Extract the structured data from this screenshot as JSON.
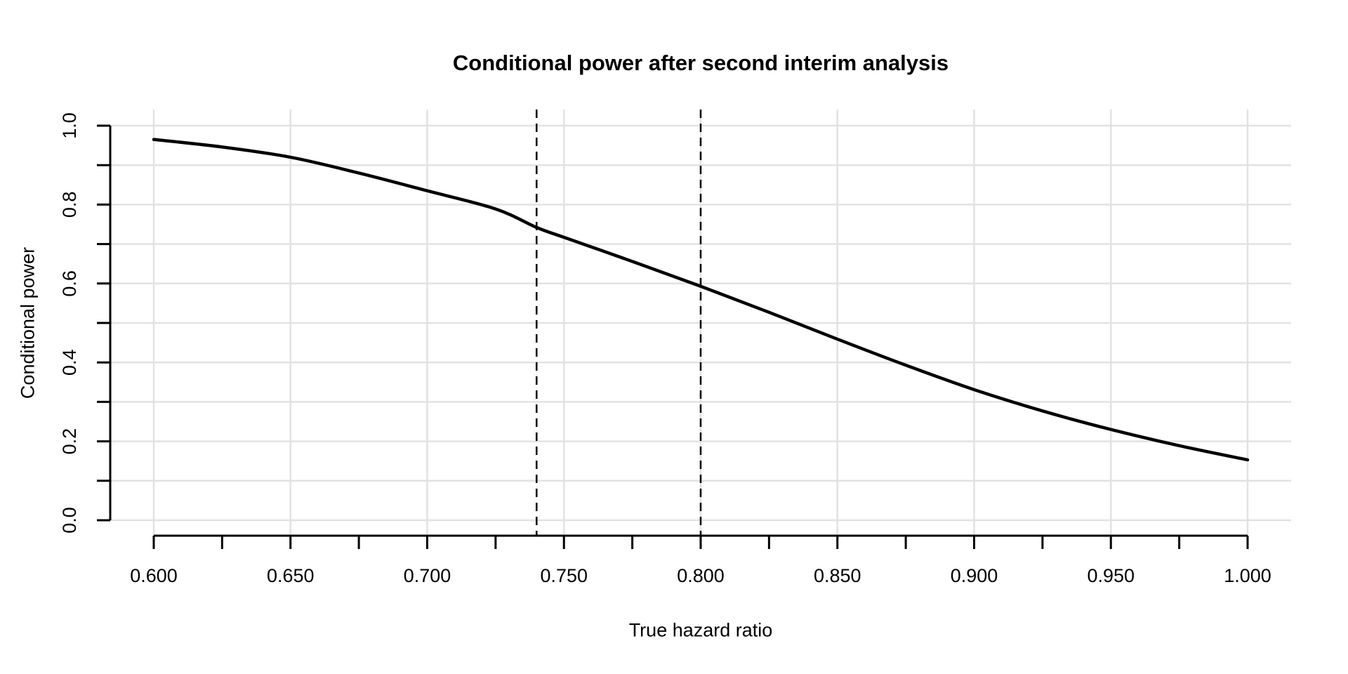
{
  "page": {
    "background": "#ffffff",
    "text_color": "#000000"
  },
  "chart_data": {
    "type": "line",
    "title": "Conditional power after second interim analysis",
    "xlabel": "True hazard ratio",
    "ylabel": "Conditional power",
    "xlim": [
      0.6,
      1.0
    ],
    "ylim": [
      0.0,
      1.0
    ],
    "x_tick_values": [
      0.6,
      0.625,
      0.65,
      0.675,
      0.7,
      0.725,
      0.75,
      0.775,
      0.8,
      0.825,
      0.85,
      0.875,
      0.9,
      0.925,
      0.95,
      0.975,
      1.0
    ],
    "x_labeled_ticks": [
      0.6,
      0.65,
      0.7,
      0.75,
      0.8,
      0.85,
      0.9,
      0.95,
      1.0
    ],
    "x_tick_labels": [
      "0.600",
      "0.650",
      "0.700",
      "0.750",
      "0.800",
      "0.850",
      "0.900",
      "0.950",
      "1.000"
    ],
    "y_tick_values": [
      0.0,
      0.1,
      0.2,
      0.3,
      0.4,
      0.5,
      0.6,
      0.7,
      0.8,
      0.9,
      1.0
    ],
    "y_labeled_ticks": [
      0.0,
      0.2,
      0.4,
      0.6,
      0.8,
      1.0
    ],
    "y_tick_labels": [
      "0.0",
      "0.2",
      "0.4",
      "0.6",
      "0.8",
      "1.0"
    ],
    "grid": {
      "show": true,
      "x_step": 0.05,
      "y_step": 0.1,
      "color": "#e2e2e2"
    },
    "legend": "none",
    "series": [
      {
        "name": "conditional-power-curve",
        "color": "#000000",
        "points": [
          [
            0.6,
            0.965
          ],
          [
            0.625,
            0.946
          ],
          [
            0.65,
            0.92
          ],
          [
            0.675,
            0.88
          ],
          [
            0.7,
            0.835
          ],
          [
            0.725,
            0.789
          ],
          [
            0.74,
            0.742
          ],
          [
            0.75,
            0.717
          ],
          [
            0.775,
            0.656
          ],
          [
            0.8,
            0.593
          ],
          [
            0.825,
            0.527
          ],
          [
            0.85,
            0.459
          ],
          [
            0.875,
            0.393
          ],
          [
            0.9,
            0.331
          ],
          [
            0.925,
            0.277
          ],
          [
            0.95,
            0.23
          ],
          [
            0.975,
            0.189
          ],
          [
            1.0,
            0.153
          ]
        ]
      }
    ],
    "reference_lines": [
      {
        "axis": "x",
        "value": 0.74,
        "style": "dashed",
        "color": "#000000"
      },
      {
        "axis": "x",
        "value": 0.8,
        "style": "dashed",
        "color": "#000000"
      }
    ]
  }
}
